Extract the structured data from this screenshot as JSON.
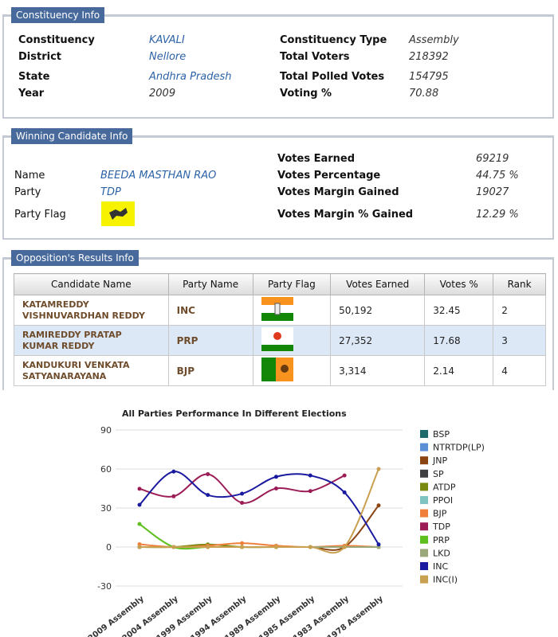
{
  "constituency_info": {
    "title": "Constituency Info",
    "rows": [
      {
        "label": "Constituency",
        "value": "KAVALI",
        "label2": "Constituency Type",
        "value2": "Assembly"
      },
      {
        "label": "District",
        "value": "Nellore",
        "label2": "Total Voters",
        "value2": "218392"
      },
      {
        "label": "State",
        "value": "Andhra Pradesh",
        "label2": "Total Polled Votes",
        "value2": "154795"
      },
      {
        "label": "Year",
        "value": "2009",
        "label2": "Voting %",
        "value2": "70.88"
      }
    ]
  },
  "winning_candidate": {
    "title": "Winning Candidate Info",
    "left": [
      {
        "label": "Name",
        "value": "BEEDA MASTHAN RAO"
      },
      {
        "label": "Party",
        "value": "TDP"
      },
      {
        "label": "Party Flag"
      }
    ],
    "right": [
      {
        "label": "Votes Earned",
        "value": "69219"
      },
      {
        "label": "Votes Percentage",
        "value": "44.75 %"
      },
      {
        "label": "Votes Margin Gained",
        "value": "19027"
      },
      {
        "label": "Votes Margin % Gained",
        "value": "12.29 %"
      }
    ]
  },
  "opposition": {
    "title": "Opposition's Results Info",
    "headers": [
      "Candidate Name",
      "Party Name",
      "Party Flag",
      "Votes Earned",
      "Votes %",
      "Rank"
    ],
    "rows": [
      [
        "KATAMREDDY VISHNUVARDHAN REDDY",
        "INC",
        "50,192",
        "32.45",
        "2"
      ],
      [
        "RAMIREDDY PRATAP KUMAR REDDY",
        "PRP",
        "27,352",
        "17.68",
        "3"
      ],
      [
        "KANDUKURI VENKATA SATYANARAYANA",
        "BJP",
        "3,314",
        "2.14",
        "4"
      ]
    ]
  },
  "chart_data": {
    "type": "line",
    "title": "All Parties Performance In Different Elections",
    "categories": [
      "2009 Assembly",
      "2004 Assembly",
      "1999 Assembly",
      "1994 Assembly",
      "1989 Assembly",
      "1985 Assembly",
      "1983 Assembly",
      "1978 Assembly"
    ],
    "ylim": [
      -30,
      90
    ],
    "yticks": [
      -30,
      0,
      30,
      60,
      90
    ],
    "grid": true,
    "legend": "right",
    "series": [
      {
        "name": "BSP",
        "color": "#1f6b6b",
        "values": [
          0,
          0,
          0,
          0,
          0,
          0,
          0,
          0
        ]
      },
      {
        "name": "NTRTDP(LP)",
        "color": "#5b8fd6",
        "values": [
          0,
          0,
          0,
          0,
          0,
          0,
          0,
          0
        ]
      },
      {
        "name": "JNP",
        "color": "#8b4513",
        "values": [
          0,
          0,
          0,
          0,
          0,
          0,
          0,
          32
        ]
      },
      {
        "name": "SP",
        "color": "#404040",
        "values": [
          0,
          0,
          0,
          0,
          0,
          0,
          0,
          0
        ]
      },
      {
        "name": "ATDP",
        "color": "#7a8a10",
        "values": [
          0,
          0,
          2,
          0,
          0,
          0,
          0,
          0
        ]
      },
      {
        "name": "PPOI",
        "color": "#7fc4c0",
        "values": [
          0,
          0,
          0,
          0,
          0,
          0,
          0,
          0
        ]
      },
      {
        "name": "BJP",
        "color": "#f07f3c",
        "values": [
          2.14,
          0,
          1,
          3,
          1,
          0,
          1,
          0
        ]
      },
      {
        "name": "TDP",
        "color": "#9c1d55",
        "values": [
          44.75,
          39,
          56,
          34,
          45,
          43,
          55,
          null
        ]
      },
      {
        "name": "PRP",
        "color": "#5fbf1f",
        "values": [
          17.68,
          0,
          0,
          0,
          0,
          0,
          0,
          0
        ]
      },
      {
        "name": "LKD",
        "color": "#9aa87a",
        "values": [
          0,
          0,
          0,
          0,
          0,
          0,
          0,
          0
        ]
      },
      {
        "name": "INC",
        "color": "#1a1aa0",
        "values": [
          32.45,
          58,
          40,
          41,
          54,
          55,
          42,
          2
        ]
      },
      {
        "name": "INC(I)",
        "color": "#c9a050",
        "values": [
          0,
          0,
          0,
          0,
          0,
          0,
          0,
          60
        ]
      }
    ]
  }
}
